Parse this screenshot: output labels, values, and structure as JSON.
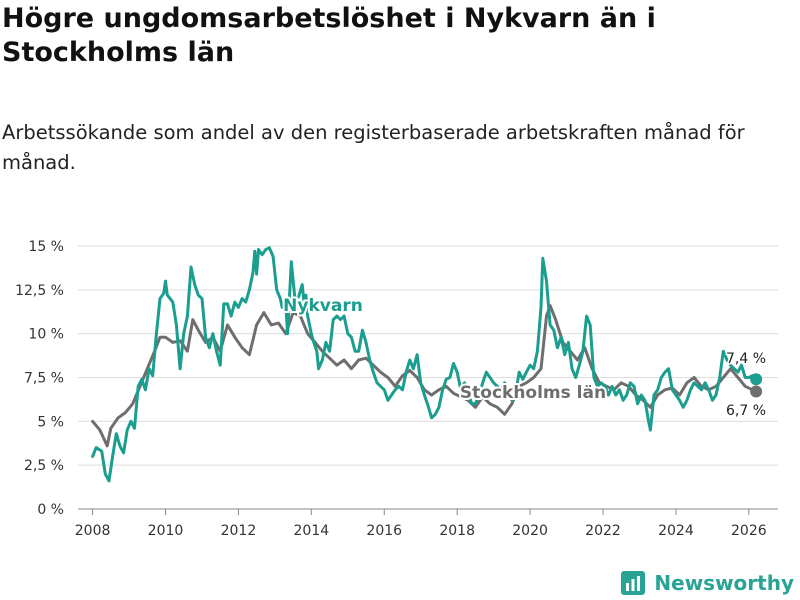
{
  "title": "Högre ungdomsarbetslöshet i Nykvarn än i Stockholms län",
  "subtitle": "Arbetssökande som andel av den registerbaserade arbetskraften månad för månad.",
  "brand": {
    "name": "Newsworthy",
    "icon": "newsworthy-chart-icon",
    "color": "#2aa394"
  },
  "colors": {
    "nykvarn": "#1a9e8f",
    "stockholm": "#6e6e6e",
    "grid": "#dddddd"
  },
  "chart_data": {
    "type": "line",
    "title": "Högre ungdomsarbetslöshet i Nykvarn än i Stockholms län",
    "xlabel": "",
    "ylabel": "",
    "xlim": [
      2007.6,
      2026.8
    ],
    "ylim": [
      0,
      15
    ],
    "x_ticks": [
      2008,
      2010,
      2012,
      2014,
      2016,
      2018,
      2020,
      2022,
      2024,
      2026
    ],
    "x_tick_labels": [
      "2008",
      "2010",
      "2012",
      "2014",
      "2016",
      "2018",
      "2020",
      "2022",
      "2024",
      "2026"
    ],
    "y_ticks": [
      0,
      2.5,
      5,
      7.5,
      10,
      12.5,
      15
    ],
    "y_tick_labels": [
      "0 %",
      "2,5 %",
      "5 %",
      "7,5 %",
      "10 %",
      "12,5 %",
      "15 %"
    ],
    "series": [
      {
        "name": "Nykvarn",
        "label": "Nykvarn",
        "end_label": "7,4 %",
        "end_value": 7.4,
        "points": [
          [
            2008.0,
            3.0
          ],
          [
            2008.1,
            3.5
          ],
          [
            2008.25,
            3.3
          ],
          [
            2008.35,
            2.0
          ],
          [
            2008.45,
            1.6
          ],
          [
            2008.55,
            3.0
          ],
          [
            2008.65,
            4.3
          ],
          [
            2008.75,
            3.6
          ],
          [
            2008.85,
            3.2
          ],
          [
            2008.95,
            4.5
          ],
          [
            2009.05,
            5.0
          ],
          [
            2009.15,
            4.6
          ],
          [
            2009.25,
            7.0
          ],
          [
            2009.35,
            7.4
          ],
          [
            2009.45,
            6.8
          ],
          [
            2009.55,
            8.0
          ],
          [
            2009.65,
            7.6
          ],
          [
            2009.75,
            10.0
          ],
          [
            2009.85,
            12.0
          ],
          [
            2009.95,
            12.3
          ],
          [
            2010.0,
            13.0
          ],
          [
            2010.05,
            12.2
          ],
          [
            2010.2,
            11.8
          ],
          [
            2010.3,
            10.5
          ],
          [
            2010.4,
            8.0
          ],
          [
            2010.5,
            10.0
          ],
          [
            2010.6,
            11.0
          ],
          [
            2010.7,
            13.8
          ],
          [
            2010.8,
            12.8
          ],
          [
            2010.9,
            12.2
          ],
          [
            2011.0,
            12.0
          ],
          [
            2011.1,
            9.8
          ],
          [
            2011.2,
            9.2
          ],
          [
            2011.3,
            10.0
          ],
          [
            2011.4,
            9.0
          ],
          [
            2011.5,
            8.2
          ],
          [
            2011.6,
            11.7
          ],
          [
            2011.7,
            11.7
          ],
          [
            2011.8,
            11.0
          ],
          [
            2011.9,
            11.8
          ],
          [
            2012.0,
            11.5
          ],
          [
            2012.1,
            12.0
          ],
          [
            2012.2,
            11.8
          ],
          [
            2012.3,
            12.5
          ],
          [
            2012.4,
            13.5
          ],
          [
            2012.45,
            14.7
          ],
          [
            2012.5,
            13.4
          ],
          [
            2012.55,
            14.8
          ],
          [
            2012.65,
            14.5
          ],
          [
            2012.75,
            14.8
          ],
          [
            2012.85,
            14.9
          ],
          [
            2012.95,
            14.4
          ],
          [
            2013.05,
            12.5
          ],
          [
            2013.15,
            12.0
          ],
          [
            2013.2,
            11.5
          ],
          [
            2013.3,
            11.6
          ],
          [
            2013.35,
            10.0
          ],
          [
            2013.45,
            14.1
          ],
          [
            2013.55,
            12.0
          ],
          [
            2013.65,
            12.1
          ],
          [
            2013.75,
            12.8
          ],
          [
            2013.8,
            11.8
          ],
          [
            2013.85,
            12.2
          ],
          [
            2013.9,
            11.0
          ],
          [
            2014.0,
            10.0
          ],
          [
            2014.05,
            9.6
          ],
          [
            2014.15,
            9.0
          ],
          [
            2014.2,
            8.0
          ],
          [
            2014.3,
            8.5
          ],
          [
            2014.4,
            9.5
          ],
          [
            2014.5,
            9.0
          ],
          [
            2014.6,
            10.8
          ],
          [
            2014.7,
            11.0
          ],
          [
            2014.8,
            10.8
          ],
          [
            2014.9,
            11.0
          ],
          [
            2015.0,
            10.0
          ],
          [
            2015.1,
            9.8
          ],
          [
            2015.2,
            9.0
          ],
          [
            2015.3,
            9.0
          ],
          [
            2015.4,
            10.2
          ],
          [
            2015.5,
            9.5
          ],
          [
            2015.6,
            8.5
          ],
          [
            2015.7,
            7.8
          ],
          [
            2015.8,
            7.2
          ],
          [
            2015.9,
            7.0
          ],
          [
            2016.0,
            6.8
          ],
          [
            2016.1,
            6.2
          ],
          [
            2016.2,
            6.5
          ],
          [
            2016.3,
            6.8
          ],
          [
            2016.4,
            7.0
          ],
          [
            2016.5,
            6.8
          ],
          [
            2016.6,
            7.8
          ],
          [
            2016.7,
            8.5
          ],
          [
            2016.8,
            8.0
          ],
          [
            2016.9,
            8.8
          ],
          [
            2017.0,
            7.2
          ],
          [
            2017.1,
            6.5
          ],
          [
            2017.2,
            5.9
          ],
          [
            2017.3,
            5.2
          ],
          [
            2017.4,
            5.4
          ],
          [
            2017.5,
            5.8
          ],
          [
            2017.6,
            6.8
          ],
          [
            2017.7,
            7.4
          ],
          [
            2017.8,
            7.5
          ],
          [
            2017.9,
            8.3
          ],
          [
            2018.0,
            7.8
          ],
          [
            2018.1,
            6.8
          ],
          [
            2018.2,
            7.2
          ],
          [
            2018.3,
            6.6
          ],
          [
            2018.4,
            6.0
          ],
          [
            2018.5,
            6.0
          ],
          [
            2018.6,
            6.5
          ],
          [
            2018.7,
            7.2
          ],
          [
            2018.8,
            7.8
          ],
          [
            2018.9,
            7.5
          ],
          [
            2019.0,
            7.2
          ],
          [
            2019.1,
            7.0
          ],
          [
            2019.2,
            6.8
          ],
          [
            2019.3,
            7.2
          ],
          [
            2019.4,
            6.8
          ],
          [
            2019.5,
            6.2
          ],
          [
            2019.6,
            6.5
          ],
          [
            2019.7,
            7.8
          ],
          [
            2019.8,
            7.4
          ],
          [
            2019.9,
            7.8
          ],
          [
            2020.0,
            8.2
          ],
          [
            2020.1,
            8.0
          ],
          [
            2020.2,
            9.0
          ],
          [
            2020.3,
            11.5
          ],
          [
            2020.35,
            14.3
          ],
          [
            2020.45,
            13.0
          ],
          [
            2020.55,
            10.5
          ],
          [
            2020.65,
            10.2
          ],
          [
            2020.75,
            9.2
          ],
          [
            2020.85,
            9.8
          ],
          [
            2020.95,
            8.8
          ],
          [
            2021.05,
            9.5
          ],
          [
            2021.15,
            8.0
          ],
          [
            2021.25,
            7.5
          ],
          [
            2021.35,
            8.2
          ],
          [
            2021.45,
            9.0
          ],
          [
            2021.55,
            11.0
          ],
          [
            2021.65,
            10.5
          ],
          [
            2021.75,
            7.5
          ],
          [
            2021.85,
            7.0
          ],
          [
            2021.95,
            7.2
          ],
          [
            2022.05,
            7.0
          ],
          [
            2022.15,
            6.5
          ],
          [
            2022.25,
            7.0
          ],
          [
            2022.35,
            6.5
          ],
          [
            2022.45,
            6.8
          ],
          [
            2022.55,
            6.2
          ],
          [
            2022.65,
            6.5
          ],
          [
            2022.75,
            7.2
          ],
          [
            2022.85,
            7.0
          ],
          [
            2022.95,
            6.0
          ],
          [
            2023.05,
            6.5
          ],
          [
            2023.15,
            6.2
          ],
          [
            2023.25,
            5.0
          ],
          [
            2023.3,
            4.5
          ],
          [
            2023.4,
            6.5
          ],
          [
            2023.5,
            6.8
          ],
          [
            2023.6,
            7.5
          ],
          [
            2023.7,
            7.8
          ],
          [
            2023.8,
            8.0
          ],
          [
            2023.9,
            6.8
          ],
          [
            2024.0,
            6.5
          ],
          [
            2024.1,
            6.2
          ],
          [
            2024.2,
            5.8
          ],
          [
            2024.3,
            6.2
          ],
          [
            2024.4,
            6.8
          ],
          [
            2024.5,
            7.2
          ],
          [
            2024.6,
            7.0
          ],
          [
            2024.7,
            6.8
          ],
          [
            2024.8,
            7.2
          ],
          [
            2024.9,
            6.8
          ],
          [
            2025.0,
            6.2
          ],
          [
            2025.1,
            6.5
          ],
          [
            2025.2,
            7.5
          ],
          [
            2025.3,
            9.0
          ],
          [
            2025.4,
            8.5
          ],
          [
            2025.5,
            8.2
          ],
          [
            2025.6,
            8.0
          ],
          [
            2025.7,
            7.8
          ],
          [
            2025.8,
            8.2
          ],
          [
            2025.9,
            7.5
          ],
          [
            2026.0,
            7.5
          ],
          [
            2026.1,
            7.6
          ],
          [
            2026.2,
            7.4
          ]
        ]
      },
      {
        "name": "Stockholms län",
        "label": "Stockholms län",
        "end_label": "6,7 %",
        "end_value": 6.7,
        "points": [
          [
            2008.0,
            5.0
          ],
          [
            2008.2,
            4.5
          ],
          [
            2008.4,
            3.6
          ],
          [
            2008.5,
            4.6
          ],
          [
            2008.7,
            5.2
          ],
          [
            2008.9,
            5.5
          ],
          [
            2009.1,
            6.0
          ],
          [
            2009.3,
            7.0
          ],
          [
            2009.5,
            8.0
          ],
          [
            2009.7,
            9.0
          ],
          [
            2009.85,
            9.8
          ],
          [
            2010.0,
            9.8
          ],
          [
            2010.2,
            9.5
          ],
          [
            2010.4,
            9.6
          ],
          [
            2010.6,
            9.0
          ],
          [
            2010.75,
            10.8
          ],
          [
            2010.9,
            10.2
          ],
          [
            2011.1,
            9.5
          ],
          [
            2011.3,
            9.8
          ],
          [
            2011.5,
            9.0
          ],
          [
            2011.7,
            10.5
          ],
          [
            2011.9,
            9.8
          ],
          [
            2012.1,
            9.2
          ],
          [
            2012.3,
            8.8
          ],
          [
            2012.5,
            10.5
          ],
          [
            2012.7,
            11.2
          ],
          [
            2012.9,
            10.5
          ],
          [
            2013.1,
            10.6
          ],
          [
            2013.3,
            10.0
          ],
          [
            2013.5,
            11.2
          ],
          [
            2013.7,
            11.0
          ],
          [
            2013.9,
            10.0
          ],
          [
            2014.1,
            9.5
          ],
          [
            2014.3,
            9.0
          ],
          [
            2014.5,
            8.6
          ],
          [
            2014.7,
            8.2
          ],
          [
            2014.9,
            8.5
          ],
          [
            2015.1,
            8.0
          ],
          [
            2015.3,
            8.5
          ],
          [
            2015.5,
            8.6
          ],
          [
            2015.7,
            8.2
          ],
          [
            2015.9,
            7.8
          ],
          [
            2016.1,
            7.5
          ],
          [
            2016.3,
            7.0
          ],
          [
            2016.5,
            7.6
          ],
          [
            2016.7,
            7.9
          ],
          [
            2016.9,
            7.5
          ],
          [
            2017.1,
            6.8
          ],
          [
            2017.3,
            6.5
          ],
          [
            2017.5,
            6.8
          ],
          [
            2017.7,
            7.0
          ],
          [
            2017.9,
            6.6
          ],
          [
            2018.1,
            6.4
          ],
          [
            2018.3,
            6.2
          ],
          [
            2018.5,
            5.8
          ],
          [
            2018.7,
            6.4
          ],
          [
            2018.9,
            6.0
          ],
          [
            2019.1,
            5.8
          ],
          [
            2019.3,
            5.4
          ],
          [
            2019.5,
            6.0
          ],
          [
            2019.7,
            7.0
          ],
          [
            2019.9,
            7.2
          ],
          [
            2020.1,
            7.5
          ],
          [
            2020.3,
            8.0
          ],
          [
            2020.45,
            11.0
          ],
          [
            2020.55,
            11.6
          ],
          [
            2020.7,
            10.8
          ],
          [
            2020.9,
            9.5
          ],
          [
            2021.1,
            9.0
          ],
          [
            2021.3,
            8.5
          ],
          [
            2021.5,
            9.2
          ],
          [
            2021.7,
            8.0
          ],
          [
            2021.9,
            7.2
          ],
          [
            2022.1,
            7.0
          ],
          [
            2022.3,
            6.8
          ],
          [
            2022.5,
            7.2
          ],
          [
            2022.7,
            7.0
          ],
          [
            2022.9,
            6.5
          ],
          [
            2023.1,
            6.2
          ],
          [
            2023.3,
            5.8
          ],
          [
            2023.5,
            6.5
          ],
          [
            2023.7,
            6.8
          ],
          [
            2023.9,
            6.9
          ],
          [
            2024.1,
            6.5
          ],
          [
            2024.3,
            7.2
          ],
          [
            2024.5,
            7.5
          ],
          [
            2024.7,
            7.0
          ],
          [
            2024.9,
            6.8
          ],
          [
            2025.1,
            7.0
          ],
          [
            2025.3,
            7.5
          ],
          [
            2025.5,
            8.0
          ],
          [
            2025.7,
            7.5
          ],
          [
            2025.9,
            7.0
          ],
          [
            2026.1,
            6.8
          ],
          [
            2026.2,
            6.7
          ]
        ]
      }
    ]
  }
}
